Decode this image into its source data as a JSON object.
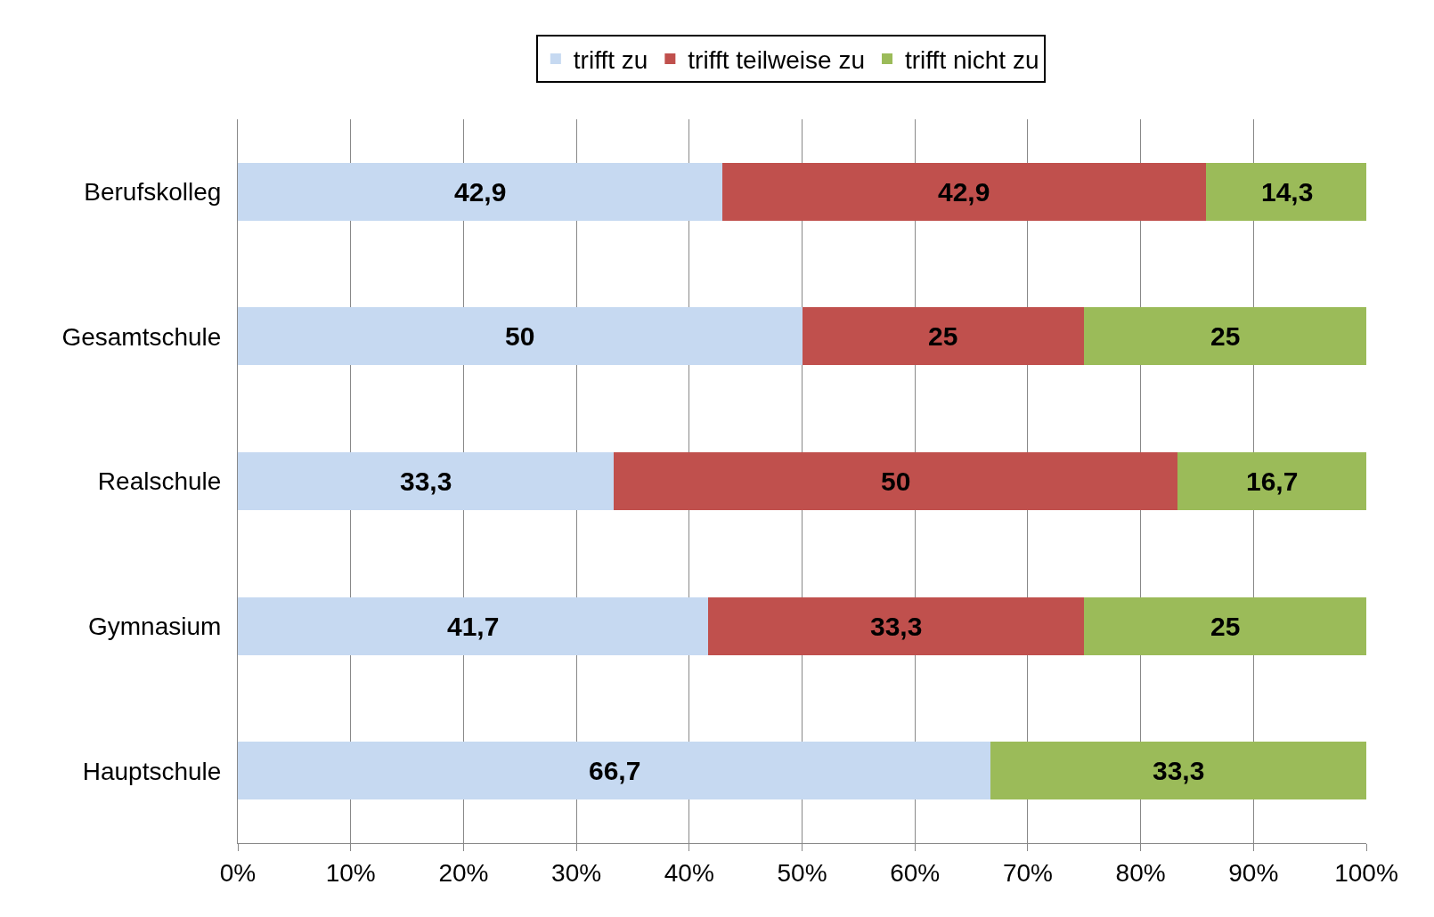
{
  "chart_data": {
    "type": "bar",
    "orientation": "horizontal",
    "stacked": true,
    "categories": [
      "Berufskolleg",
      "Gesamtschule",
      "Realschule",
      "Gymnasium",
      "Hauptschule"
    ],
    "series": [
      {
        "name": "trifft zu",
        "color": "#c6d9f1",
        "values": [
          42.9,
          50,
          33.3,
          41.7,
          66.7
        ],
        "value_labels": [
          "42,9",
          "50",
          "33,3",
          "41,7",
          "66,7"
        ]
      },
      {
        "name": "trifft teilweise zu",
        "color": "#c0504d",
        "values": [
          42.9,
          25,
          50,
          33.3,
          null
        ],
        "value_labels": [
          "42,9",
          "25",
          "50",
          "33,3",
          null
        ]
      },
      {
        "name": "trifft nicht zu",
        "color": "#9bbb59",
        "values": [
          14.3,
          25,
          16.7,
          25,
          33.3
        ],
        "value_labels": [
          "14,3",
          "25",
          "16,7",
          "25",
          "33,3"
        ]
      }
    ],
    "xlim": [
      0,
      100
    ],
    "xticks": [
      {
        "value": 0,
        "label": "0%"
      },
      {
        "value": 10,
        "label": "10%"
      },
      {
        "value": 20,
        "label": "20%"
      },
      {
        "value": 30,
        "label": "30%"
      },
      {
        "value": 40,
        "label": "40%"
      },
      {
        "value": 50,
        "label": "50%"
      },
      {
        "value": 60,
        "label": "60%"
      },
      {
        "value": 70,
        "label": "70%"
      },
      {
        "value": 80,
        "label": "80%"
      },
      {
        "value": 90,
        "label": "90%"
      },
      {
        "value": 100,
        "label": "100%"
      }
    ],
    "grid": "x",
    "legend": "top"
  }
}
